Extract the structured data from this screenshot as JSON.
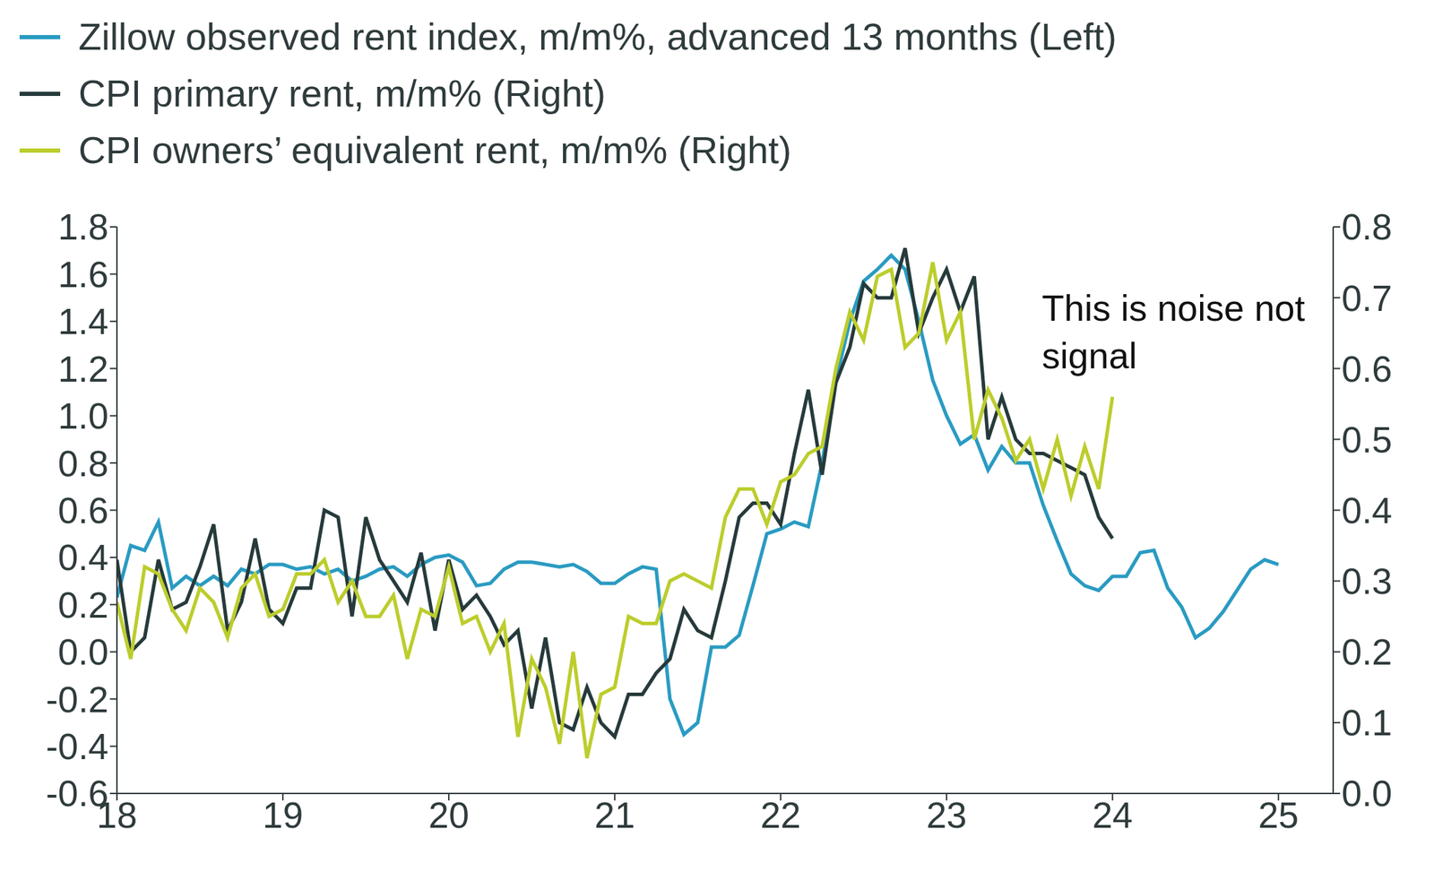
{
  "chart_data": {
    "type": "line",
    "legend": "top",
    "grid": false,
    "annotations": [
      "This is noise not signal"
    ],
    "x": [
      18,
      18.083,
      18.167,
      18.25,
      18.333,
      18.417,
      18.5,
      18.583,
      18.667,
      18.75,
      18.833,
      18.917,
      19,
      19.083,
      19.167,
      19.25,
      19.333,
      19.417,
      19.5,
      19.583,
      19.667,
      19.75,
      19.833,
      19.917,
      20,
      20.083,
      20.167,
      20.25,
      20.333,
      20.417,
      20.5,
      20.583,
      20.667,
      20.75,
      20.833,
      20.917,
      21,
      21.083,
      21.167,
      21.25,
      21.333,
      21.417,
      21.5,
      21.583,
      21.667,
      21.75,
      21.833,
      21.917,
      22,
      22.083,
      22.167,
      22.25,
      22.333,
      22.417,
      22.5,
      22.583,
      22.667,
      22.75,
      22.833,
      22.917,
      23,
      23.083,
      23.167,
      23.25,
      23.333,
      23.417,
      23.5,
      23.583,
      23.667,
      23.75,
      23.833,
      23.917,
      24,
      24.083,
      24.167,
      24.25,
      24.333,
      24.417,
      24.5,
      24.583,
      24.667,
      24.75,
      24.833,
      24.917,
      25
    ],
    "xlim": [
      18,
      25.33
    ],
    "xticks": [
      18,
      19,
      20,
      21,
      22,
      23,
      24,
      25
    ],
    "ylim": [
      -0.6,
      1.8
    ],
    "yticks": [
      -0.6,
      -0.4,
      -0.2,
      {
        "value": 0,
        "label": "0.0"
      },
      0.2,
      0.4,
      0.6,
      0.8,
      {
        "value": 1,
        "label": "1.0"
      },
      1.2,
      1.4,
      1.6,
      1.8
    ],
    "y2lim": [
      0,
      0.8
    ],
    "y2ticks": [
      {
        "value": 0,
        "label": "0.0"
      },
      0.1,
      0.2,
      0.3,
      0.4,
      0.5,
      0.6,
      0.7,
      0.8
    ],
    "series": [
      {
        "name": "Zillow observed rent index, m/m%, advanced 13 months (Left)",
        "color": "#2a9bc2",
        "axis": "y",
        "values": [
          0.23,
          0.45,
          0.43,
          0.55,
          0.27,
          0.32,
          0.28,
          0.32,
          0.28,
          0.35,
          0.33,
          0.37,
          0.37,
          0.35,
          0.36,
          0.33,
          0.35,
          0.3,
          0.32,
          0.35,
          0.36,
          0.32,
          0.37,
          0.4,
          0.41,
          0.38,
          0.28,
          0.29,
          0.35,
          0.38,
          0.38,
          0.37,
          0.36,
          0.37,
          0.34,
          0.29,
          0.29,
          0.33,
          0.36,
          0.35,
          -0.2,
          -0.35,
          -0.3,
          0.02,
          0.02,
          0.07,
          0.28,
          0.5,
          0.52,
          0.55,
          0.53,
          0.8,
          1.15,
          1.4,
          1.57,
          1.62,
          1.68,
          1.62,
          1.4,
          1.15,
          1.0,
          0.88,
          0.92,
          0.77,
          0.87,
          0.8,
          0.8,
          0.62,
          0.47,
          0.33,
          0.28,
          0.26,
          0.32,
          0.32,
          0.42,
          0.43,
          0.27,
          0.19,
          0.06,
          0.1,
          0.17,
          0.26,
          0.35,
          0.39,
          0.37
        ]
      },
      {
        "name": "CPI primary rent, m/m% (Right)",
        "color": "#263a3b",
        "axis": "y2",
        "values": [
          0.33,
          0.2,
          0.22,
          0.33,
          0.26,
          0.27,
          0.32,
          0.38,
          0.23,
          0.27,
          0.36,
          0.26,
          0.24,
          0.29,
          0.29,
          0.4,
          0.39,
          0.25,
          0.39,
          0.33,
          0.3,
          0.27,
          0.34,
          0.23,
          0.33,
          0.26,
          0.28,
          0.25,
          0.21,
          0.23,
          0.12,
          0.22,
          0.1,
          0.09,
          0.15,
          0.1,
          0.08,
          0.14,
          0.14,
          0.17,
          0.19,
          0.26,
          0.23,
          0.22,
          0.3,
          0.39,
          0.41,
          0.41,
          0.38,
          0.48,
          0.57,
          0.45,
          0.58,
          0.63,
          0.72,
          0.7,
          0.7,
          0.77,
          0.65,
          0.7,
          0.74,
          0.68,
          0.73,
          0.5,
          0.56,
          0.5,
          0.48,
          0.48,
          0.47,
          0.46,
          0.45,
          0.39,
          0.36,
          null,
          null,
          null,
          null,
          null,
          null,
          null,
          null,
          null,
          null,
          null,
          null
        ]
      },
      {
        "name": "CPI owners’ equivalent rent, m/m% (Right)",
        "color": "#bccd2c",
        "axis": "y2",
        "values": [
          0.27,
          0.19,
          0.32,
          0.31,
          0.26,
          0.23,
          0.29,
          0.27,
          0.22,
          0.29,
          0.31,
          0.25,
          0.26,
          0.31,
          0.31,
          0.33,
          0.27,
          0.3,
          0.25,
          0.25,
          0.28,
          0.19,
          0.26,
          0.25,
          0.32,
          0.24,
          0.25,
          0.2,
          0.24,
          0.08,
          0.19,
          0.15,
          0.07,
          0.2,
          0.05,
          0.14,
          0.15,
          0.25,
          0.24,
          0.24,
          0.3,
          0.31,
          0.3,
          0.29,
          0.39,
          0.43,
          0.43,
          0.38,
          0.44,
          0.45,
          0.48,
          0.49,
          0.6,
          0.68,
          0.64,
          0.73,
          0.74,
          0.63,
          0.65,
          0.75,
          0.64,
          0.68,
          0.5,
          0.57,
          0.53,
          0.47,
          0.5,
          0.43,
          0.5,
          0.42,
          0.49,
          0.43,
          0.56,
          null,
          null,
          null,
          null,
          null,
          null,
          null,
          null,
          null,
          null,
          null,
          null
        ]
      }
    ]
  }
}
